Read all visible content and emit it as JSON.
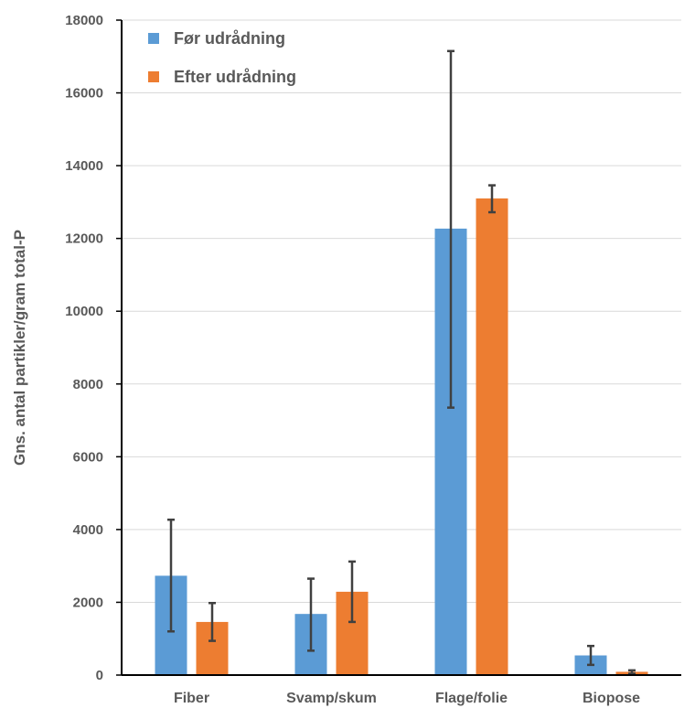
{
  "chart_data": {
    "type": "bar",
    "ylabel": "Gns. antal partikler/gram total-P",
    "xlabel": "",
    "ylim": [
      0,
      18000
    ],
    "yticks": [
      0,
      2000,
      4000,
      6000,
      8000,
      10000,
      12000,
      14000,
      16000,
      18000
    ],
    "grid": "horizontal",
    "legend_position": "top-left",
    "categories": [
      "Fiber",
      "Svamp/skum",
      "Flage/folie",
      "Biopose"
    ],
    "series": [
      {
        "name": "Før udrådning",
        "color": "#5B9BD5",
        "values": [
          2730,
          1680,
          12270,
          540
        ],
        "error_low": [
          1200,
          670,
          7350,
          280
        ],
        "error_high": [
          4270,
          2650,
          17150,
          800
        ]
      },
      {
        "name": "Efter udrådning",
        "color": "#ED7D31",
        "values": [
          1460,
          2290,
          13100,
          90
        ],
        "error_low": [
          940,
          1460,
          12720,
          40
        ],
        "error_high": [
          1980,
          3120,
          13460,
          130
        ]
      }
    ]
  }
}
